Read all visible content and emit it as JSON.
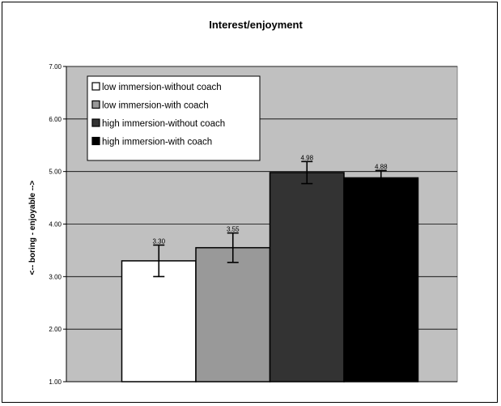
{
  "chart_data": {
    "type": "bar",
    "title": "Interest/enjoyment",
    "ylabel": "<-- boring  -  enjoyable -->",
    "xlabel": "",
    "ylim": [
      1,
      7
    ],
    "yticks": [
      "1.00",
      "2.00",
      "3.00",
      "4.00",
      "5.00",
      "6.00",
      "7.00"
    ],
    "grid": true,
    "legend_position": "top-left",
    "plot_background": "#c0c0c0",
    "series": [
      {
        "name": "low immersion-without coach",
        "value": 3.3,
        "label": "3.30",
        "error_low": 3.0,
        "error_high": 3.6,
        "color": "#ffffff"
      },
      {
        "name": "low immersion-with coach",
        "value": 3.55,
        "label": "3.55",
        "error_low": 3.27,
        "error_high": 3.83,
        "color": "#999999"
      },
      {
        "name": "high immersion-without coach",
        "value": 4.98,
        "label": "4.98",
        "error_low": 4.77,
        "error_high": 5.19,
        "color": "#333333"
      },
      {
        "name": "high immersion-with coach",
        "value": 4.88,
        "label": "4.88",
        "error_low": 4.74,
        "error_high": 5.02,
        "color": "#000000"
      }
    ]
  }
}
